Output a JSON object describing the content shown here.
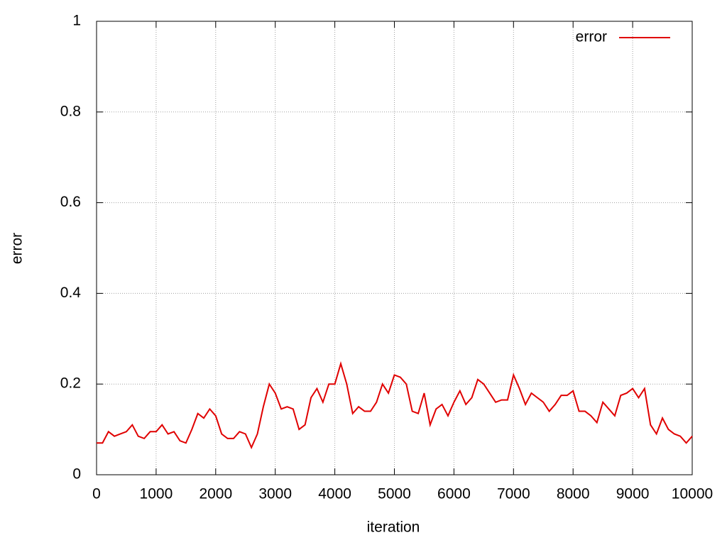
{
  "chart_data": {
    "type": "line",
    "xlabel": "iteration",
    "ylabel": "error",
    "x": [
      0,
      100,
      200,
      300,
      400,
      500,
      600,
      700,
      800,
      900,
      1000,
      1100,
      1200,
      1300,
      1400,
      1500,
      1600,
      1700,
      1800,
      1900,
      2000,
      2100,
      2200,
      2300,
      2400,
      2500,
      2600,
      2700,
      2800,
      2900,
      3000,
      3100,
      3200,
      3300,
      3400,
      3500,
      3600,
      3700,
      3800,
      3900,
      4000,
      4100,
      4200,
      4300,
      4400,
      4500,
      4600,
      4700,
      4800,
      4900,
      5000,
      5100,
      5200,
      5300,
      5400,
      5500,
      5600,
      5700,
      5800,
      5900,
      6000,
      6100,
      6200,
      6300,
      6400,
      6500,
      6600,
      6700,
      6800,
      6900,
      7000,
      7100,
      7200,
      7300,
      7400,
      7500,
      7600,
      7700,
      7800,
      7900,
      8000,
      8100,
      8200,
      8300,
      8400,
      8500,
      8600,
      8700,
      8800,
      8900,
      9000,
      9100,
      9200,
      9300,
      9400,
      9500,
      9600,
      9700,
      9800,
      9900,
      10000
    ],
    "series": [
      {
        "name": "error",
        "color": "#e00000",
        "values": [
          0.07,
          0.07,
          0.095,
          0.085,
          0.09,
          0.095,
          0.11,
          0.085,
          0.08,
          0.095,
          0.095,
          0.11,
          0.09,
          0.095,
          0.075,
          0.07,
          0.1,
          0.135,
          0.125,
          0.145,
          0.13,
          0.09,
          0.08,
          0.08,
          0.095,
          0.09,
          0.06,
          0.09,
          0.15,
          0.2,
          0.18,
          0.145,
          0.15,
          0.145,
          0.1,
          0.11,
          0.17,
          0.19,
          0.16,
          0.2,
          0.2,
          0.245,
          0.2,
          0.135,
          0.15,
          0.14,
          0.14,
          0.16,
          0.2,
          0.18,
          0.22,
          0.215,
          0.2,
          0.14,
          0.135,
          0.18,
          0.11,
          0.145,
          0.155,
          0.13,
          0.16,
          0.185,
          0.155,
          0.17,
          0.21,
          0.2,
          0.18,
          0.16,
          0.165,
          0.165,
          0.22,
          0.19,
          0.155,
          0.18,
          0.17,
          0.16,
          0.14,
          0.155,
          0.175,
          0.175,
          0.185,
          0.14,
          0.14,
          0.13,
          0.115,
          0.16,
          0.145,
          0.13,
          0.175,
          0.18,
          0.19,
          0.17,
          0.19,
          0.11,
          0.09,
          0.125,
          0.1,
          0.09,
          0.085,
          0.07,
          0.085
        ]
      }
    ],
    "xlim": [
      0,
      10000
    ],
    "xticks": [
      0,
      1000,
      2000,
      3000,
      4000,
      5000,
      6000,
      7000,
      8000,
      9000,
      10000
    ],
    "ylim": [
      0,
      1
    ],
    "yticks": [
      0,
      0.2,
      0.4,
      0.6,
      0.8,
      1
    ],
    "grid": true,
    "legend": "top-right"
  }
}
